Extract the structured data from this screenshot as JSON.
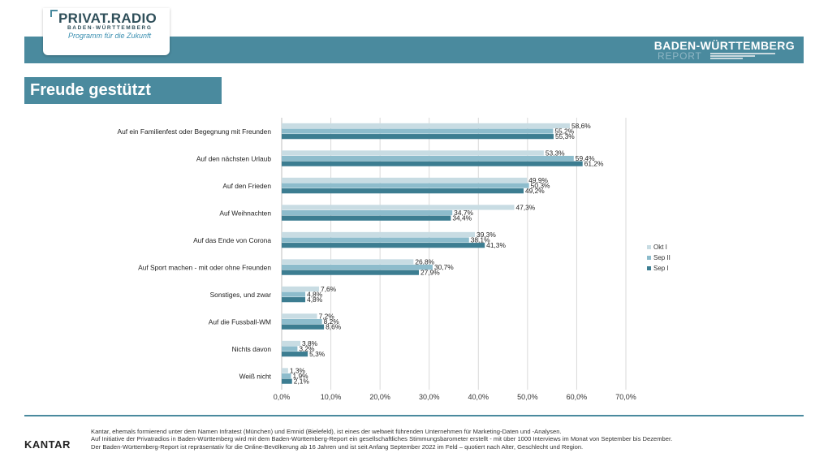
{
  "header": {
    "logo_title": "PRIVAT.RADIO",
    "logo_subtitle": "BADEN-WÜRTTEMBERG",
    "logo_tagline": "Programm für die Zukunft",
    "report_title": "BADEN-WÜRTTEMBERG",
    "report_sub": "REPORT"
  },
  "page_title": "Freude gestützt",
  "colors": {
    "brand": "#4a8a9e",
    "okt_i": "#c8dce3",
    "sep_ii": "#8dbccc",
    "sep_i": "#3c7d91"
  },
  "chart_data": {
    "type": "bar",
    "orientation": "horizontal",
    "categories": [
      "Auf ein Familienfest oder Begegnung mit Freunden",
      "Auf den nächsten Urlaub",
      "Auf den Frieden",
      "Auf Weihnachten",
      "Auf das Ende von Corona",
      "Auf Sport machen - mit oder ohne Freunden",
      "Sonstiges, und zwar",
      "Auf die Fussball-WM",
      "Nichts davon",
      "Weiß nicht"
    ],
    "series": [
      {
        "name": "Okt I",
        "values": [
          58.6,
          53.3,
          49.9,
          47.3,
          39.3,
          26.8,
          7.6,
          7.2,
          3.8,
          1.3
        ],
        "labels": [
          "58,6%",
          "53,3%",
          "49,9%",
          "47,3%",
          "39,3%",
          "26,8%",
          "7,6%",
          "7,2%",
          "3,8%",
          "1,3%"
        ]
      },
      {
        "name": "Sep II",
        "values": [
          55.2,
          59.4,
          50.3,
          34.7,
          38.1,
          30.7,
          4.8,
          8.2,
          3.2,
          1.9
        ],
        "labels": [
          "55,2%",
          "59,4%",
          "50,3%",
          "34,7%",
          "38,1%",
          "30,7%",
          "4,8%",
          "8,2%",
          "3,2%",
          "1,9%"
        ]
      },
      {
        "name": "Sep I",
        "values": [
          55.3,
          61.2,
          49.2,
          34.4,
          41.3,
          27.9,
          4.8,
          8.6,
          5.3,
          2.1
        ],
        "labels": [
          "55,3%",
          "61,2%",
          "49,2%",
          "34,4%",
          "41,3%",
          "27,9%",
          "4,8%",
          "8,6%",
          "5,3%",
          "2,1%"
        ]
      }
    ],
    "xlim": [
      0,
      70
    ],
    "xticks": [
      "0,0%",
      "10,0%",
      "20,0%",
      "30,0%",
      "40,0%",
      "50,0%",
      "60,0%",
      "70,0%"
    ],
    "grid": true,
    "legend_position": "right",
    "legend": [
      "Okt I",
      "Sep II",
      "Sep I"
    ]
  },
  "footer": {
    "brand": "KANTAR",
    "line1": "Kantar, ehemals formierend unter dem Namen Infratest (München) und Emnid (Bielefeld), ist eines der weltweit führenden Unternehmen für Marketing-Daten und -Analysen.",
    "line2": "Auf Initiative der Privatradios in Baden-Württemberg wird mit dem Baden-Württemberg-Report ein gesellschaftliches Stimmungsbarometer erstellt - mit über 1000 Interviews im Monat von September bis Dezember.",
    "line3": "Der Baden-Württemberg-Report ist repräsentativ für die Online-Bevölkerung ab 16 Jahren und ist seit Anfang September 2022 im Feld – quotiert nach Alter, Geschlecht und Region."
  }
}
